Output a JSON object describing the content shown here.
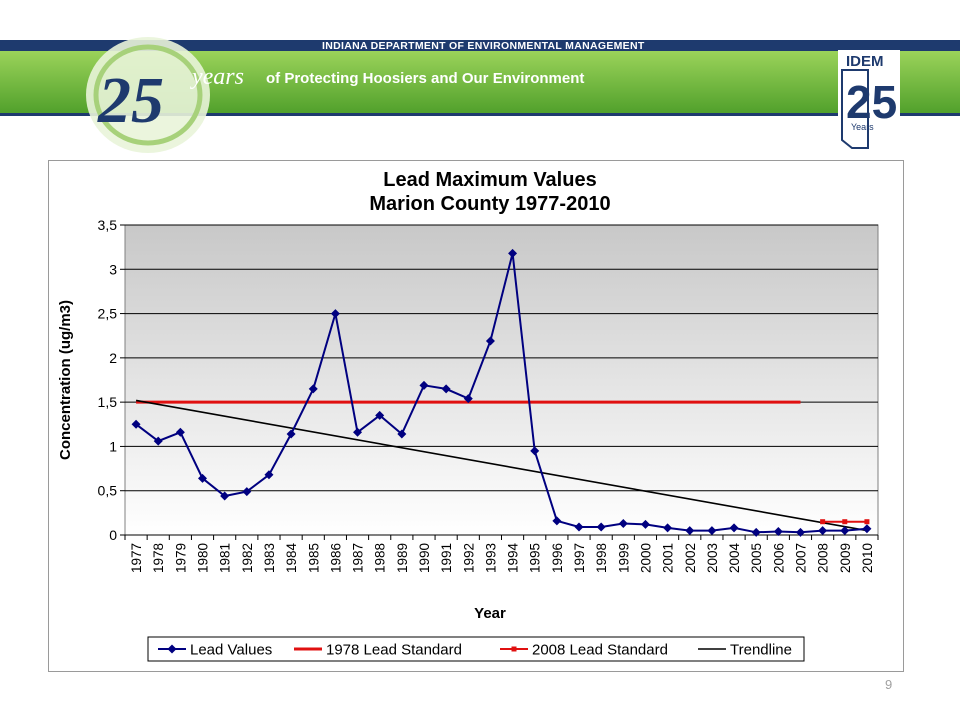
{
  "banner": {
    "agency": "INDIANA DEPARTMENT OF ENVIRONMENTAL MANAGEMENT",
    "tagline": "of Protecting Hoosiers and Our Environment",
    "anniversary_number": "25",
    "anniversary_word": "years",
    "logo_brand": "IDEM",
    "logo_number": "25",
    "logo_word": "Years"
  },
  "slide_number": "9",
  "colors": {
    "banner_green": "#6fb83b",
    "banner_dark": "#1e3a6e",
    "lead_values": "#000080",
    "standard_1978": "#e01010",
    "standard_2008": "#e01010",
    "trendline": "#000000"
  },
  "chart_data": {
    "type": "line",
    "title": "Lead Maximum Values",
    "subtitle": "Marion County 1977-2010",
    "xlabel": "Year",
    "ylabel": "Concentration (ug/m3)",
    "ylim": [
      0,
      3.5
    ],
    "y_ticks": [
      "0",
      "0,5",
      "1",
      "1,5",
      "2",
      "2,5",
      "3",
      "3,5"
    ],
    "y_tick_values": [
      0,
      0.5,
      1,
      1.5,
      2,
      2.5,
      3,
      3.5
    ],
    "categories": [
      "1977",
      "1978",
      "1979",
      "1980",
      "1981",
      "1982",
      "1983",
      "1984",
      "1985",
      "1986",
      "1987",
      "1988",
      "1989",
      "1990",
      "1991",
      "1992",
      "1993",
      "1994",
      "1995",
      "1996",
      "1997",
      "1998",
      "1999",
      "2000",
      "2001",
      "2002",
      "2003",
      "2004",
      "2005",
      "2006",
      "2007",
      "2008",
      "2009",
      "2010"
    ],
    "grid": true,
    "legend_position": "bottom",
    "series": [
      {
        "name": "Lead Values",
        "style": "line-diamond",
        "values": [
          1.25,
          1.06,
          1.16,
          0.64,
          0.44,
          0.49,
          0.68,
          1.14,
          1.65,
          2.5,
          1.16,
          1.35,
          1.14,
          1.69,
          1.65,
          1.54,
          2.19,
          3.18,
          0.95,
          0.16,
          0.09,
          0.09,
          0.13,
          0.12,
          0.08,
          0.05,
          0.05,
          0.08,
          0.03,
          0.04,
          0.03,
          0.05,
          0.05,
          0.07
        ]
      },
      {
        "name": "1978 Lead Standard",
        "style": "line-thick",
        "values": [
          1.5,
          1.5,
          1.5,
          1.5,
          1.5,
          1.5,
          1.5,
          1.5,
          1.5,
          1.5,
          1.5,
          1.5,
          1.5,
          1.5,
          1.5,
          1.5,
          1.5,
          1.5,
          1.5,
          1.5,
          1.5,
          1.5,
          1.5,
          1.5,
          1.5,
          1.5,
          1.5,
          1.5,
          1.5,
          1.5,
          1.5,
          null,
          null,
          null
        ]
      },
      {
        "name": "2008 Lead Standard",
        "style": "line-square",
        "values": [
          null,
          null,
          null,
          null,
          null,
          null,
          null,
          null,
          null,
          null,
          null,
          null,
          null,
          null,
          null,
          null,
          null,
          null,
          null,
          null,
          null,
          null,
          null,
          null,
          null,
          null,
          null,
          null,
          null,
          null,
          null,
          0.15,
          0.15,
          0.15
        ]
      },
      {
        "name": "Trendline",
        "style": "line-thin",
        "values": [
          1.52,
          null,
          null,
          null,
          null,
          null,
          null,
          null,
          null,
          null,
          null,
          null,
          null,
          null,
          null,
          null,
          null,
          null,
          null,
          null,
          null,
          null,
          null,
          null,
          null,
          null,
          null,
          null,
          null,
          null,
          null,
          null,
          null,
          0.05
        ]
      }
    ]
  }
}
